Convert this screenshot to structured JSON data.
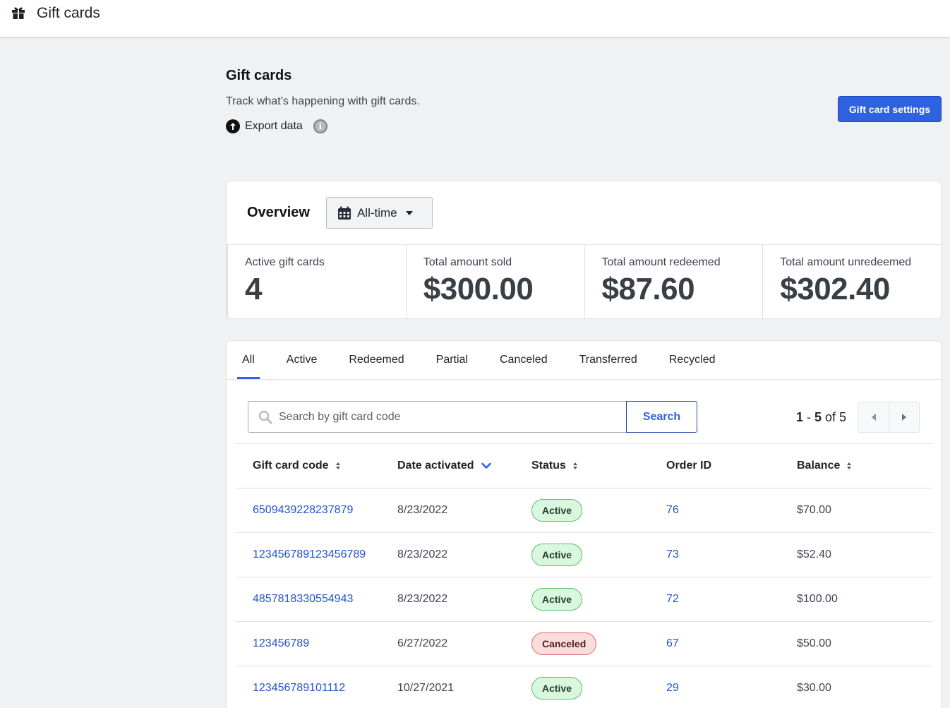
{
  "topbar": {
    "title": "Gift cards",
    "icon": "gift-icon"
  },
  "header": {
    "title": "Gift cards",
    "subtitle": "Track what’s happening with gift cards.",
    "export_label": "Export data",
    "settings_label": "Gift card settings"
  },
  "overview": {
    "title": "Overview",
    "range": "All-time",
    "stats": [
      {
        "label": "Active gift cards",
        "value": "4"
      },
      {
        "label": "Total amount sold",
        "value": "$300.00"
      },
      {
        "label": "Total amount redeemed",
        "value": "$87.60"
      },
      {
        "label": "Total amount unredeemed",
        "value": "$302.40"
      }
    ]
  },
  "tabs": [
    "All",
    "Active",
    "Redeemed",
    "Partial",
    "Canceled",
    "Transferred",
    "Recycled"
  ],
  "active_tab": "All",
  "search": {
    "placeholder": "Search by gift card code",
    "button_label": "Search"
  },
  "pager": {
    "start": "1",
    "end": "5",
    "sep": " - ",
    "of_label": " of ",
    "total": "5"
  },
  "table": {
    "columns": [
      "Gift card code",
      "Date activated",
      "Status",
      "Order ID",
      "Balance"
    ],
    "rows": [
      {
        "code": "6509439228237879",
        "date": "8/23/2022",
        "status": "Active",
        "order": "76",
        "balance": "$70.00"
      },
      {
        "code": "123456789123456789",
        "date": "8/23/2022",
        "status": "Active",
        "order": "73",
        "balance": "$52.40"
      },
      {
        "code": "4857818330554943",
        "date": "8/23/2022",
        "status": "Active",
        "order": "72",
        "balance": "$100.00"
      },
      {
        "code": "123456789",
        "date": "6/27/2022",
        "status": "Canceled",
        "order": "67",
        "balance": "$50.00"
      },
      {
        "code": "123456789101112",
        "date": "10/27/2021",
        "status": "Active",
        "order": "29",
        "balance": "$30.00"
      }
    ]
  },
  "colors": {
    "accent": "#2f62e0",
    "link": "#2253c9",
    "active_bg": "#d9f7df",
    "canceled_bg": "#fbdcdc"
  }
}
